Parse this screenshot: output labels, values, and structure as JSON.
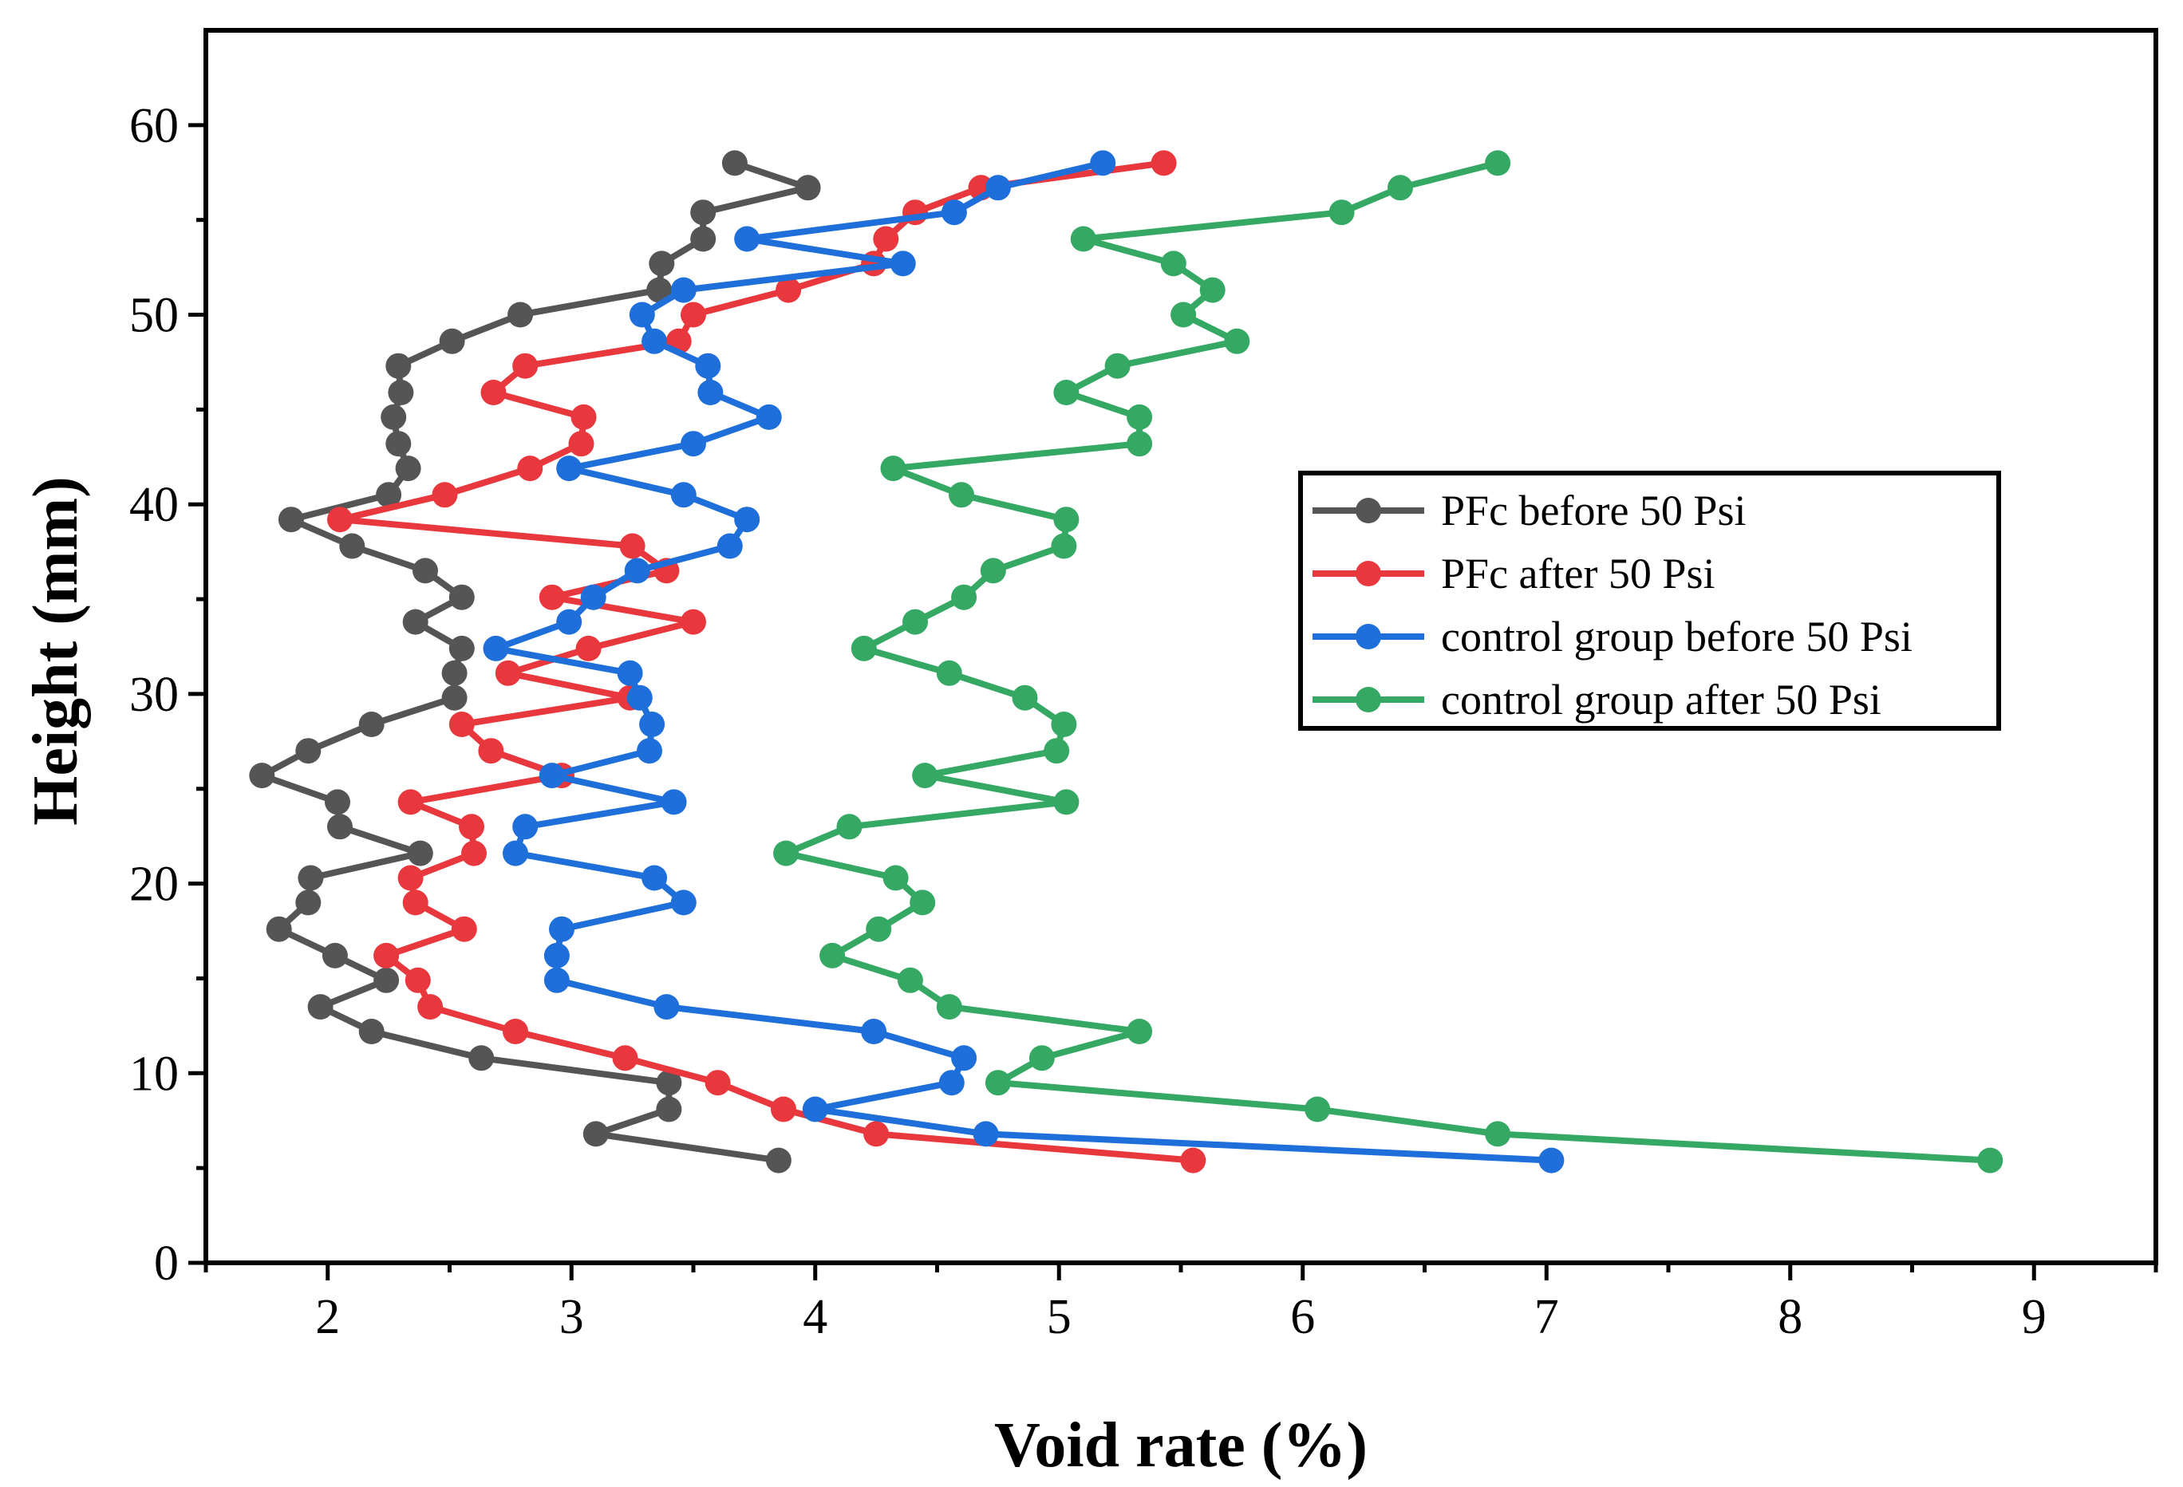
{
  "chart_data": {
    "type": "line",
    "title": "",
    "xlabel": "Void rate (%)",
    "ylabel": "Height (mm)",
    "xlim": [
      1.5,
      9.5
    ],
    "ylim": [
      0,
      65
    ],
    "xticks": [
      2,
      3,
      4,
      5,
      6,
      7,
      8,
      9
    ],
    "yticks": [
      0,
      10,
      20,
      30,
      40,
      50,
      60
    ],
    "grid": false,
    "legend_position": "right-center",
    "series": [
      {
        "name": "PFc before 50 Psi",
        "color": "#555555",
        "points": [
          [
            3.85,
            5.4
          ],
          [
            3.1,
            6.8
          ],
          [
            3.4,
            8.1
          ],
          [
            3.4,
            9.5
          ],
          [
            2.63,
            10.8
          ],
          [
            2.18,
            12.2
          ],
          [
            1.97,
            13.5
          ],
          [
            2.24,
            14.9
          ],
          [
            2.03,
            16.2
          ],
          [
            1.8,
            17.6
          ],
          [
            1.92,
            19.0
          ],
          [
            1.93,
            20.3
          ],
          [
            2.38,
            21.6
          ],
          [
            2.05,
            23.0
          ],
          [
            2.04,
            24.3
          ],
          [
            1.73,
            25.7
          ],
          [
            1.92,
            27.0
          ],
          [
            2.18,
            28.4
          ],
          [
            2.52,
            29.8
          ],
          [
            2.52,
            31.1
          ],
          [
            2.55,
            32.4
          ],
          [
            2.36,
            33.8
          ],
          [
            2.55,
            35.1
          ],
          [
            2.4,
            36.5
          ],
          [
            2.1,
            37.8
          ],
          [
            1.85,
            39.2
          ],
          [
            2.25,
            40.5
          ],
          [
            2.33,
            41.9
          ],
          [
            2.29,
            43.2
          ],
          [
            2.27,
            44.6
          ],
          [
            2.3,
            45.9
          ],
          [
            2.29,
            47.3
          ],
          [
            2.51,
            48.6
          ],
          [
            2.79,
            50.0
          ],
          [
            3.36,
            51.3
          ],
          [
            3.37,
            52.7
          ],
          [
            3.54,
            54.0
          ],
          [
            3.54,
            55.4
          ],
          [
            3.97,
            56.7
          ],
          [
            3.67,
            58.0
          ]
        ]
      },
      {
        "name": "PFc after 50 Psi",
        "color": "#e8383d",
        "points": [
          [
            5.55,
            5.4
          ],
          [
            4.25,
            6.8
          ],
          [
            3.87,
            8.1
          ],
          [
            3.6,
            9.5
          ],
          [
            3.22,
            10.8
          ],
          [
            2.77,
            12.2
          ],
          [
            2.42,
            13.5
          ],
          [
            2.37,
            14.9
          ],
          [
            2.24,
            16.2
          ],
          [
            2.56,
            17.6
          ],
          [
            2.36,
            19.0
          ],
          [
            2.34,
            20.3
          ],
          [
            2.6,
            21.6
          ],
          [
            2.59,
            23.0
          ],
          [
            2.34,
            24.3
          ],
          [
            2.96,
            25.7
          ],
          [
            2.67,
            27.0
          ],
          [
            2.55,
            28.4
          ],
          [
            3.24,
            29.8
          ],
          [
            2.74,
            31.1
          ],
          [
            3.07,
            32.4
          ],
          [
            3.5,
            33.8
          ],
          [
            2.92,
            35.1
          ],
          [
            3.39,
            36.5
          ],
          [
            3.25,
            37.8
          ],
          [
            2.05,
            39.2
          ],
          [
            2.48,
            40.5
          ],
          [
            2.83,
            41.9
          ],
          [
            3.04,
            43.2
          ],
          [
            3.05,
            44.6
          ],
          [
            2.68,
            45.9
          ],
          [
            2.81,
            47.3
          ],
          [
            3.44,
            48.6
          ],
          [
            3.5,
            50.0
          ],
          [
            3.89,
            51.3
          ],
          [
            4.24,
            52.7
          ],
          [
            4.29,
            54.0
          ],
          [
            4.41,
            55.4
          ],
          [
            4.68,
            56.7
          ],
          [
            5.43,
            58.0
          ]
        ]
      },
      {
        "name": "control group before 50 Psi",
        "color": "#1e6fd9",
        "points": [
          [
            7.02,
            5.4
          ],
          [
            4.7,
            6.8
          ],
          [
            4.0,
            8.1
          ],
          [
            4.56,
            9.5
          ],
          [
            4.61,
            10.8
          ],
          [
            4.24,
            12.2
          ],
          [
            3.39,
            13.5
          ],
          [
            2.94,
            14.9
          ],
          [
            2.94,
            16.2
          ],
          [
            2.96,
            17.6
          ],
          [
            3.46,
            19.0
          ],
          [
            3.34,
            20.3
          ],
          [
            2.77,
            21.6
          ],
          [
            2.81,
            23.0
          ],
          [
            3.42,
            24.3
          ],
          [
            2.92,
            25.7
          ],
          [
            3.32,
            27.0
          ],
          [
            3.33,
            28.4
          ],
          [
            3.28,
            29.8
          ],
          [
            3.24,
            31.1
          ],
          [
            2.69,
            32.4
          ],
          [
            2.99,
            33.8
          ],
          [
            3.09,
            35.1
          ],
          [
            3.27,
            36.5
          ],
          [
            3.65,
            37.8
          ],
          [
            3.72,
            39.2
          ],
          [
            3.46,
            40.5
          ],
          [
            2.99,
            41.9
          ],
          [
            3.5,
            43.2
          ],
          [
            3.81,
            44.6
          ],
          [
            3.57,
            45.9
          ],
          [
            3.56,
            47.3
          ],
          [
            3.34,
            48.6
          ],
          [
            3.29,
            50.0
          ],
          [
            3.46,
            51.3
          ],
          [
            4.36,
            52.7
          ],
          [
            3.72,
            54.0
          ],
          [
            4.57,
            55.4
          ],
          [
            4.75,
            56.7
          ],
          [
            5.18,
            58.0
          ]
        ]
      },
      {
        "name": "control group after 50 Psi",
        "color": "#35a864",
        "points": [
          [
            8.82,
            5.4
          ],
          [
            6.8,
            6.8
          ],
          [
            6.06,
            8.1
          ],
          [
            4.75,
            9.5
          ],
          [
            4.93,
            10.8
          ],
          [
            5.33,
            12.2
          ],
          [
            4.55,
            13.5
          ],
          [
            4.39,
            14.9
          ],
          [
            4.07,
            16.2
          ],
          [
            4.26,
            17.6
          ],
          [
            4.44,
            19.0
          ],
          [
            4.33,
            20.3
          ],
          [
            3.88,
            21.6
          ],
          [
            4.14,
            23.0
          ],
          [
            5.03,
            24.3
          ],
          [
            4.45,
            25.7
          ],
          [
            4.99,
            27.0
          ],
          [
            5.02,
            28.4
          ],
          [
            4.86,
            29.8
          ],
          [
            4.55,
            31.1
          ],
          [
            4.2,
            32.4
          ],
          [
            4.41,
            33.8
          ],
          [
            4.61,
            35.1
          ],
          [
            4.73,
            36.5
          ],
          [
            5.02,
            37.8
          ],
          [
            5.03,
            39.2
          ],
          [
            4.6,
            40.5
          ],
          [
            4.32,
            41.9
          ],
          [
            5.33,
            43.2
          ],
          [
            5.33,
            44.6
          ],
          [
            5.03,
            45.9
          ],
          [
            5.24,
            47.3
          ],
          [
            5.73,
            48.6
          ],
          [
            5.51,
            50.0
          ],
          [
            5.63,
            51.3
          ],
          [
            5.47,
            52.7
          ],
          [
            5.1,
            54.0
          ],
          [
            6.16,
            55.4
          ],
          [
            6.4,
            56.7
          ],
          [
            6.8,
            58.0
          ]
        ]
      }
    ]
  }
}
